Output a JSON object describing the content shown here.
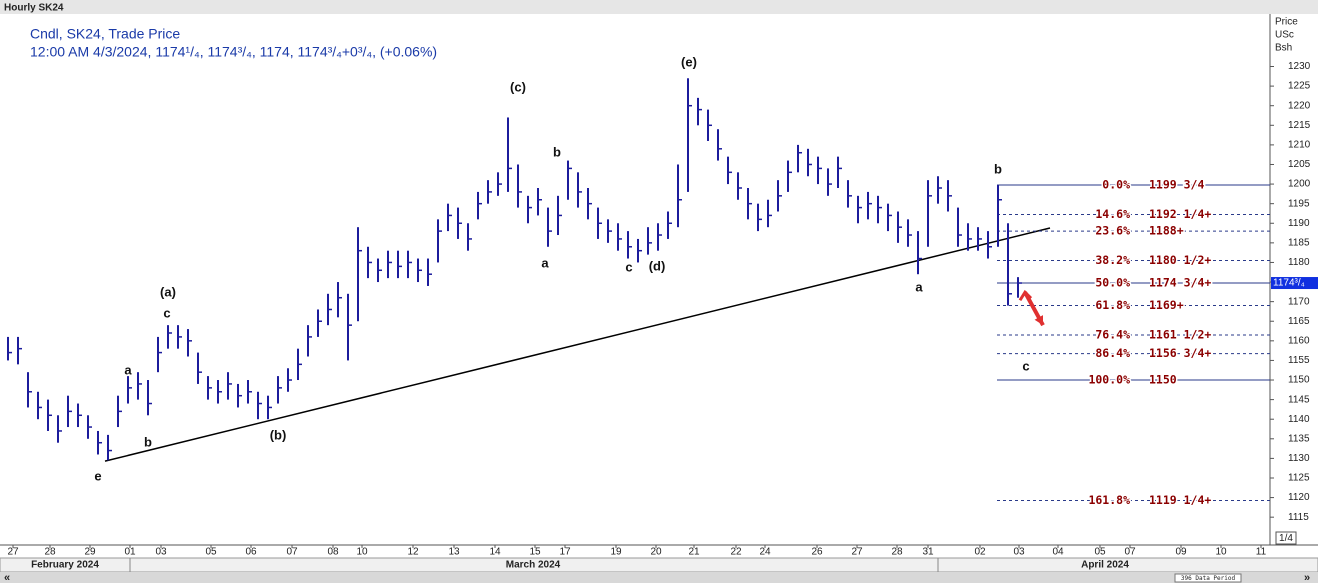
{
  "chart_data": {
    "type": "ohlc",
    "title": "Hourly SK24",
    "legend_lines": [
      "Cndl, SK24, Trade Price",
      "12:00 AM 4/3/2024, 1174¹/₄, 1174³/₄, 1174, 1174³/₄+0³/₄, (+0.06%)"
    ],
    "y_axis_header": [
      "Price",
      "USc",
      "Bsh"
    ],
    "color": "#1c1c9c",
    "high": [
      1161,
      1161,
      1152,
      1147,
      1145,
      1141,
      1146,
      1144,
      1141,
      1137,
      1136,
      1146,
      1151,
      1152,
      1150,
      1161,
      1164,
      1164,
      1163,
      1157,
      1151,
      1150,
      1152,
      1149,
      1150,
      1147,
      1146,
      1151,
      1153,
      1158,
      1164,
      1168,
      1172,
      1175,
      1172,
      1189,
      1184,
      1181,
      1183,
      1183,
      1183,
      1181,
      1181,
      1191,
      1195,
      1194,
      1190,
      1198,
      1201,
      1203,
      1217,
      1205,
      1197,
      1199,
      1194,
      1197,
      1206,
      1203,
      1199,
      1194,
      1191,
      1190,
      1188,
      1186,
      1189,
      1190,
      1193,
      1205,
      1227,
      1222,
      1219,
      1214,
      1207,
      1203,
      1199,
      1195,
      1196,
      1201,
      1206,
      1210,
      1209,
      1207,
      1204,
      1207,
      1201,
      1197,
      1198,
      1197,
      1195,
      1193,
      1191,
      1188,
      1201,
      1202,
      1201,
      1194,
      1190,
      1189,
      1188,
      1199.75,
      1190,
      1176.25
    ],
    "low": [
      1155,
      1154,
      1143,
      1140,
      1137,
      1134,
      1138,
      1138,
      1135,
      1131,
      1129.5,
      1138,
      1144,
      1145,
      1141,
      1152,
      1158,
      1158,
      1156,
      1149,
      1145,
      1144,
      1145,
      1143,
      1144,
      1140,
      1140,
      1144,
      1147,
      1150,
      1156,
      1161,
      1164,
      1166,
      1155,
      1165,
      1176,
      1175,
      1176,
      1176,
      1176,
      1175,
      1174,
      1180,
      1188,
      1186,
      1183,
      1191,
      1195,
      1197,
      1198,
      1194,
      1190,
      1192,
      1184,
      1187,
      1196,
      1194,
      1191,
      1186,
      1185,
      1183,
      1181,
      1180,
      1182,
      1183,
      1186,
      1189,
      1198,
      1215,
      1211,
      1206,
      1200,
      1196,
      1191,
      1188,
      1189,
      1193,
      1198,
      1203,
      1202,
      1200,
      1197,
      1199,
      1194,
      1190,
      1191,
      1190,
      1188,
      1185,
      1184,
      1177,
      1184,
      1195,
      1193,
      1184,
      1183,
      1183,
      1181,
      1184,
      1169,
      1171
    ],
    "close": [
      1157,
      1158,
      1147,
      1143,
      1141,
      1137,
      1142,
      1141,
      1138,
      1134,
      1132,
      1142,
      1148,
      1149,
      1144,
      1157,
      1162,
      1161,
      1160,
      1152,
      1148,
      1147,
      1149,
      1146,
      1147,
      1144,
      1143,
      1148,
      1150,
      1154,
      1161,
      1165,
      1168,
      1171,
      1164,
      1183,
      1180,
      1178,
      1180,
      1179,
      1180,
      1178,
      1177,
      1188,
      1192,
      1190,
      1186,
      1195,
      1198,
      1200,
      1204,
      1198,
      1194,
      1196,
      1188,
      1192,
      1204,
      1198,
      1195,
      1190,
      1188,
      1186,
      1184,
      1183,
      1185,
      1187,
      1190,
      1196,
      1220,
      1219,
      1215,
      1209,
      1203,
      1199,
      1195,
      1191,
      1192,
      1197,
      1203,
      1208,
      1205,
      1204,
      1200,
      1204,
      1197,
      1194,
      1195,
      1194,
      1192,
      1189,
      1187,
      1181,
      1197,
      1199,
      1197,
      1187,
      1186,
      1186,
      1184,
      1196,
      1172,
      1174.75
    ],
    "xlim": [
      -0.3,
      126.2
    ],
    "ylim": [
      1107.9,
      1243.4
    ],
    "xticks": [
      {
        "value": 0.5,
        "label": "27"
      },
      {
        "value": 4.2,
        "label": "28"
      },
      {
        "value": 8.2,
        "label": "29"
      },
      {
        "value": 12.2,
        "label": "01"
      },
      {
        "value": 15.3,
        "label": "03"
      },
      {
        "value": 20.3,
        "label": "05"
      },
      {
        "value": 24.3,
        "label": "06"
      },
      {
        "value": 28.4,
        "label": "07"
      },
      {
        "value": 32.5,
        "label": "08"
      },
      {
        "value": 35.4,
        "label": "10"
      },
      {
        "value": 40.5,
        "label": "12"
      },
      {
        "value": 44.6,
        "label": "13"
      },
      {
        "value": 48.7,
        "label": "14"
      },
      {
        "value": 52.7,
        "label": "15"
      },
      {
        "value": 55.7,
        "label": "17"
      },
      {
        "value": 60.8,
        "label": "19"
      },
      {
        "value": 64.8,
        "label": "20"
      },
      {
        "value": 68.6,
        "label": "21"
      },
      {
        "value": 72.8,
        "label": "22"
      },
      {
        "value": 75.7,
        "label": "24"
      },
      {
        "value": 80.9,
        "label": "26"
      },
      {
        "value": 84.9,
        "label": "27"
      },
      {
        "value": 88.9,
        "label": "28"
      },
      {
        "value": 92,
        "label": "31"
      },
      {
        "value": 97.2,
        "label": "02"
      },
      {
        "value": 101.1,
        "label": "03"
      },
      {
        "value": 105,
        "label": "04"
      },
      {
        "value": 109.2,
        "label": "05"
      },
      {
        "value": 112.2,
        "label": "07"
      },
      {
        "value": 117.3,
        "label": "09"
      },
      {
        "value": 121.3,
        "label": "10"
      },
      {
        "value": 125.3,
        "label": "11"
      }
    ],
    "yticks": [
      1115,
      1120,
      1125,
      1130,
      1135,
      1140,
      1145,
      1150,
      1155,
      1160,
      1165,
      1170,
      1175,
      1180,
      1185,
      1190,
      1195,
      1200,
      1205,
      1210,
      1215,
      1220,
      1225,
      1230
    ],
    "months": [
      {
        "label": "February 2024",
        "x": 5.7
      },
      {
        "label": "March 2024",
        "x": 52.5
      },
      {
        "label": "April 2024",
        "x": 109.7
      }
    ],
    "last_price": {
      "value": 1174.75,
      "label": "1174³/₄"
    },
    "trendline": {
      "x": [
        9.7,
        104.2
      ],
      "y": [
        1129.3,
        1188.8
      ]
    },
    "arrow": {
      "x": [
        101.7,
        103.5
      ],
      "y": [
        1172.4,
        1164
      ]
    },
    "fib_start": 98.9,
    "fibonacci": [
      {
        "ratio": "0.0%",
        "price_label": "1199 3/4",
        "value": 1199.75
      },
      {
        "ratio": "14.6%",
        "price_label": "1192 1/4+",
        "value": 1192.25
      },
      {
        "ratio": "23.6%",
        "price_label": "1188+",
        "value": 1188
      },
      {
        "ratio": "38.2%",
        "price_label": "1180 1/2+",
        "value": 1180.5
      },
      {
        "ratio": "50.0%",
        "price_label": "1174 3/4+",
        "value": 1174.75
      },
      {
        "ratio": "61.8%",
        "price_label": "1169+",
        "value": 1169
      },
      {
        "ratio": "76.4%",
        "price_label": "1161 1/2+",
        "value": 1161.5
      },
      {
        "ratio": "86.4%",
        "price_label": "1156 3/4+",
        "value": 1156.75
      },
      {
        "ratio": "100.0%",
        "price_label": "1150",
        "value": 1150
      },
      {
        "ratio": "161.8%",
        "price_label": "1119 1/4+",
        "value": 1119.25
      }
    ],
    "wave_labels": [
      {
        "text": "e",
        "x": 9,
        "y": 1125.3
      },
      {
        "text": "b",
        "x": 14,
        "y": 1133.9
      },
      {
        "text": "a",
        "x": 12,
        "y": 1152.3
      },
      {
        "text": "c",
        "x": 15.9,
        "y": 1166.8
      },
      {
        "text": "(a)",
        "x": 16,
        "y": 1172.2
      },
      {
        "text": "(b)",
        "x": 27,
        "y": 1135.7
      },
      {
        "text": "(c)",
        "x": 51,
        "y": 1224.5
      },
      {
        "text": "b",
        "x": 54.9,
        "y": 1207.9
      },
      {
        "text": "a",
        "x": 53.7,
        "y": 1179.6
      },
      {
        "text": "c",
        "x": 62.1,
        "y": 1178.6
      },
      {
        "text": "(d)",
        "x": 64.9,
        "y": 1178.8
      },
      {
        "text": "(e)",
        "x": 68.1,
        "y": 1230.9
      },
      {
        "text": "a",
        "x": 91.1,
        "y": 1173.5
      },
      {
        "text": "b",
        "x": 99,
        "y": 1203.6
      },
      {
        "text": "c",
        "x": 101.8,
        "y": 1153.3
      }
    ],
    "period_label": "396 Data Period",
    "scale_label": "1/4",
    "nav": [
      "«",
      "»"
    ]
  }
}
